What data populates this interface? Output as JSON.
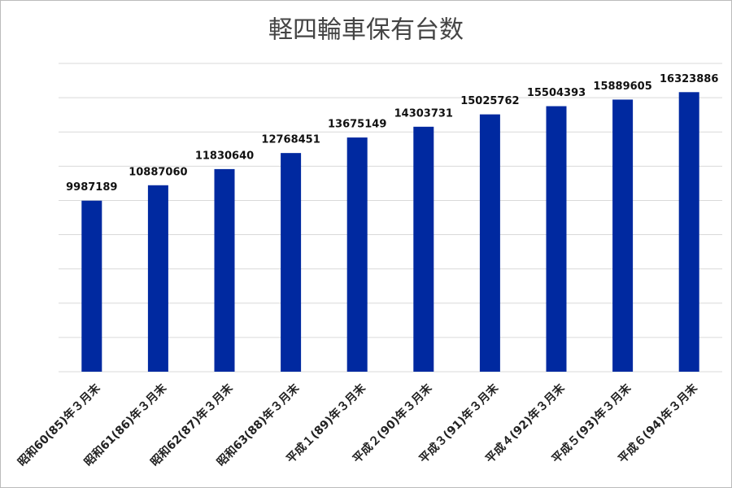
{
  "chart_data": {
    "type": "bar",
    "title": "軽四輪車保有台数",
    "categories": [
      "昭和60(85)年３月末",
      "昭和61(86)年３月末",
      "昭和62(87)年３月末",
      "昭和63(88)年３月末",
      "平成１(89)年３月末",
      "平成２(90)年３月末",
      "平成３(91)年３月末",
      "平成４(92)年３月末",
      "平成５(93)年３月末",
      "平成６(94)年３月末"
    ],
    "values": [
      9987189,
      10887060,
      11830640,
      12768451,
      13675149,
      14303731,
      15025762,
      15504393,
      15889605,
      16323886
    ],
    "color": "#0029a0",
    "ylim": [
      0,
      18000000
    ],
    "yticks": [
      0,
      2000000,
      4000000,
      6000000,
      8000000,
      10000000,
      12000000,
      14000000,
      16000000,
      18000000
    ],
    "grid": true
  }
}
